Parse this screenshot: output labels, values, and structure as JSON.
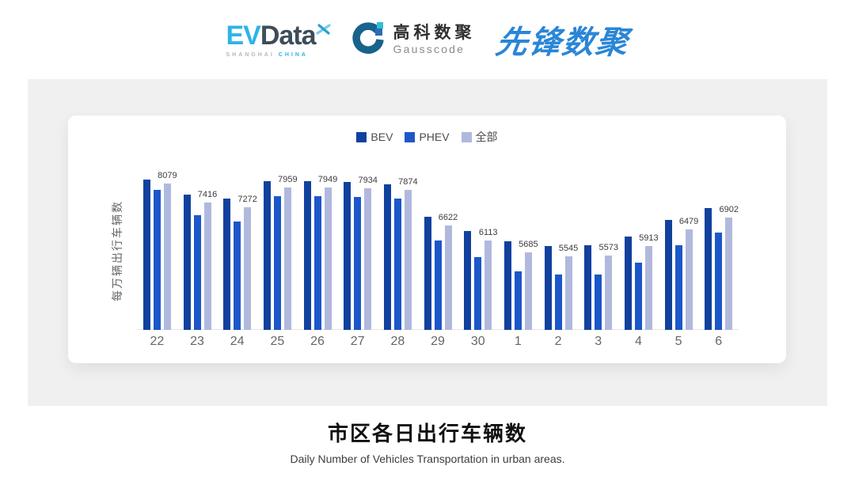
{
  "header": {
    "evdata": {
      "ev": "EV",
      "data": "Data",
      "shanghai": "SHANGHAI",
      "china": "CHINA"
    },
    "gausscode": {
      "cn": "高科数聚",
      "en": "Gausscode"
    },
    "xianfeng": "先锋数聚"
  },
  "chart_data": {
    "type": "bar",
    "title": "市区各日出行车辆数",
    "subtitle": "Daily Number of Vehicles Transportation in urban areas.",
    "ylabel": "每万辆出行车辆数",
    "categories": [
      "22",
      "23",
      "24",
      "25",
      "26",
      "27",
      "28",
      "29",
      "30",
      "1",
      "2",
      "3",
      "4",
      "5",
      "6"
    ],
    "series": [
      {
        "name": "BEV",
        "color": "#11419e",
        "values": [
          8230,
          7690,
          7570,
          8160,
          8160,
          8140,
          8060,
          6940,
          6440,
          6080,
          5920,
          5940,
          6240,
          6810,
          7230
        ]
      },
      {
        "name": "PHEV",
        "color": "#1c57c9",
        "values": [
          7860,
          6980,
          6780,
          7650,
          7640,
          7620,
          7570,
          6110,
          5520,
          5040,
          4930,
          4920,
          5340,
          5930,
          6380
        ]
      },
      {
        "name": "全部",
        "color": "#b0b9dd",
        "values": [
          8079,
          7416,
          7272,
          7959,
          7949,
          7934,
          7874,
          6622,
          6113,
          5685,
          5545,
          5573,
          5913,
          6479,
          6902
        ]
      }
    ],
    "labeled_series": "全部",
    "data_labels": [
      8079,
      7416,
      7272,
      7959,
      7949,
      7934,
      7874,
      6622,
      6113,
      5685,
      5545,
      5573,
      5913,
      6479,
      6902
    ],
    "y_axis": {
      "min": 3000,
      "max": 8500,
      "tick_labels_visible": false
    },
    "legend_position": "top-center",
    "grid": false
  }
}
